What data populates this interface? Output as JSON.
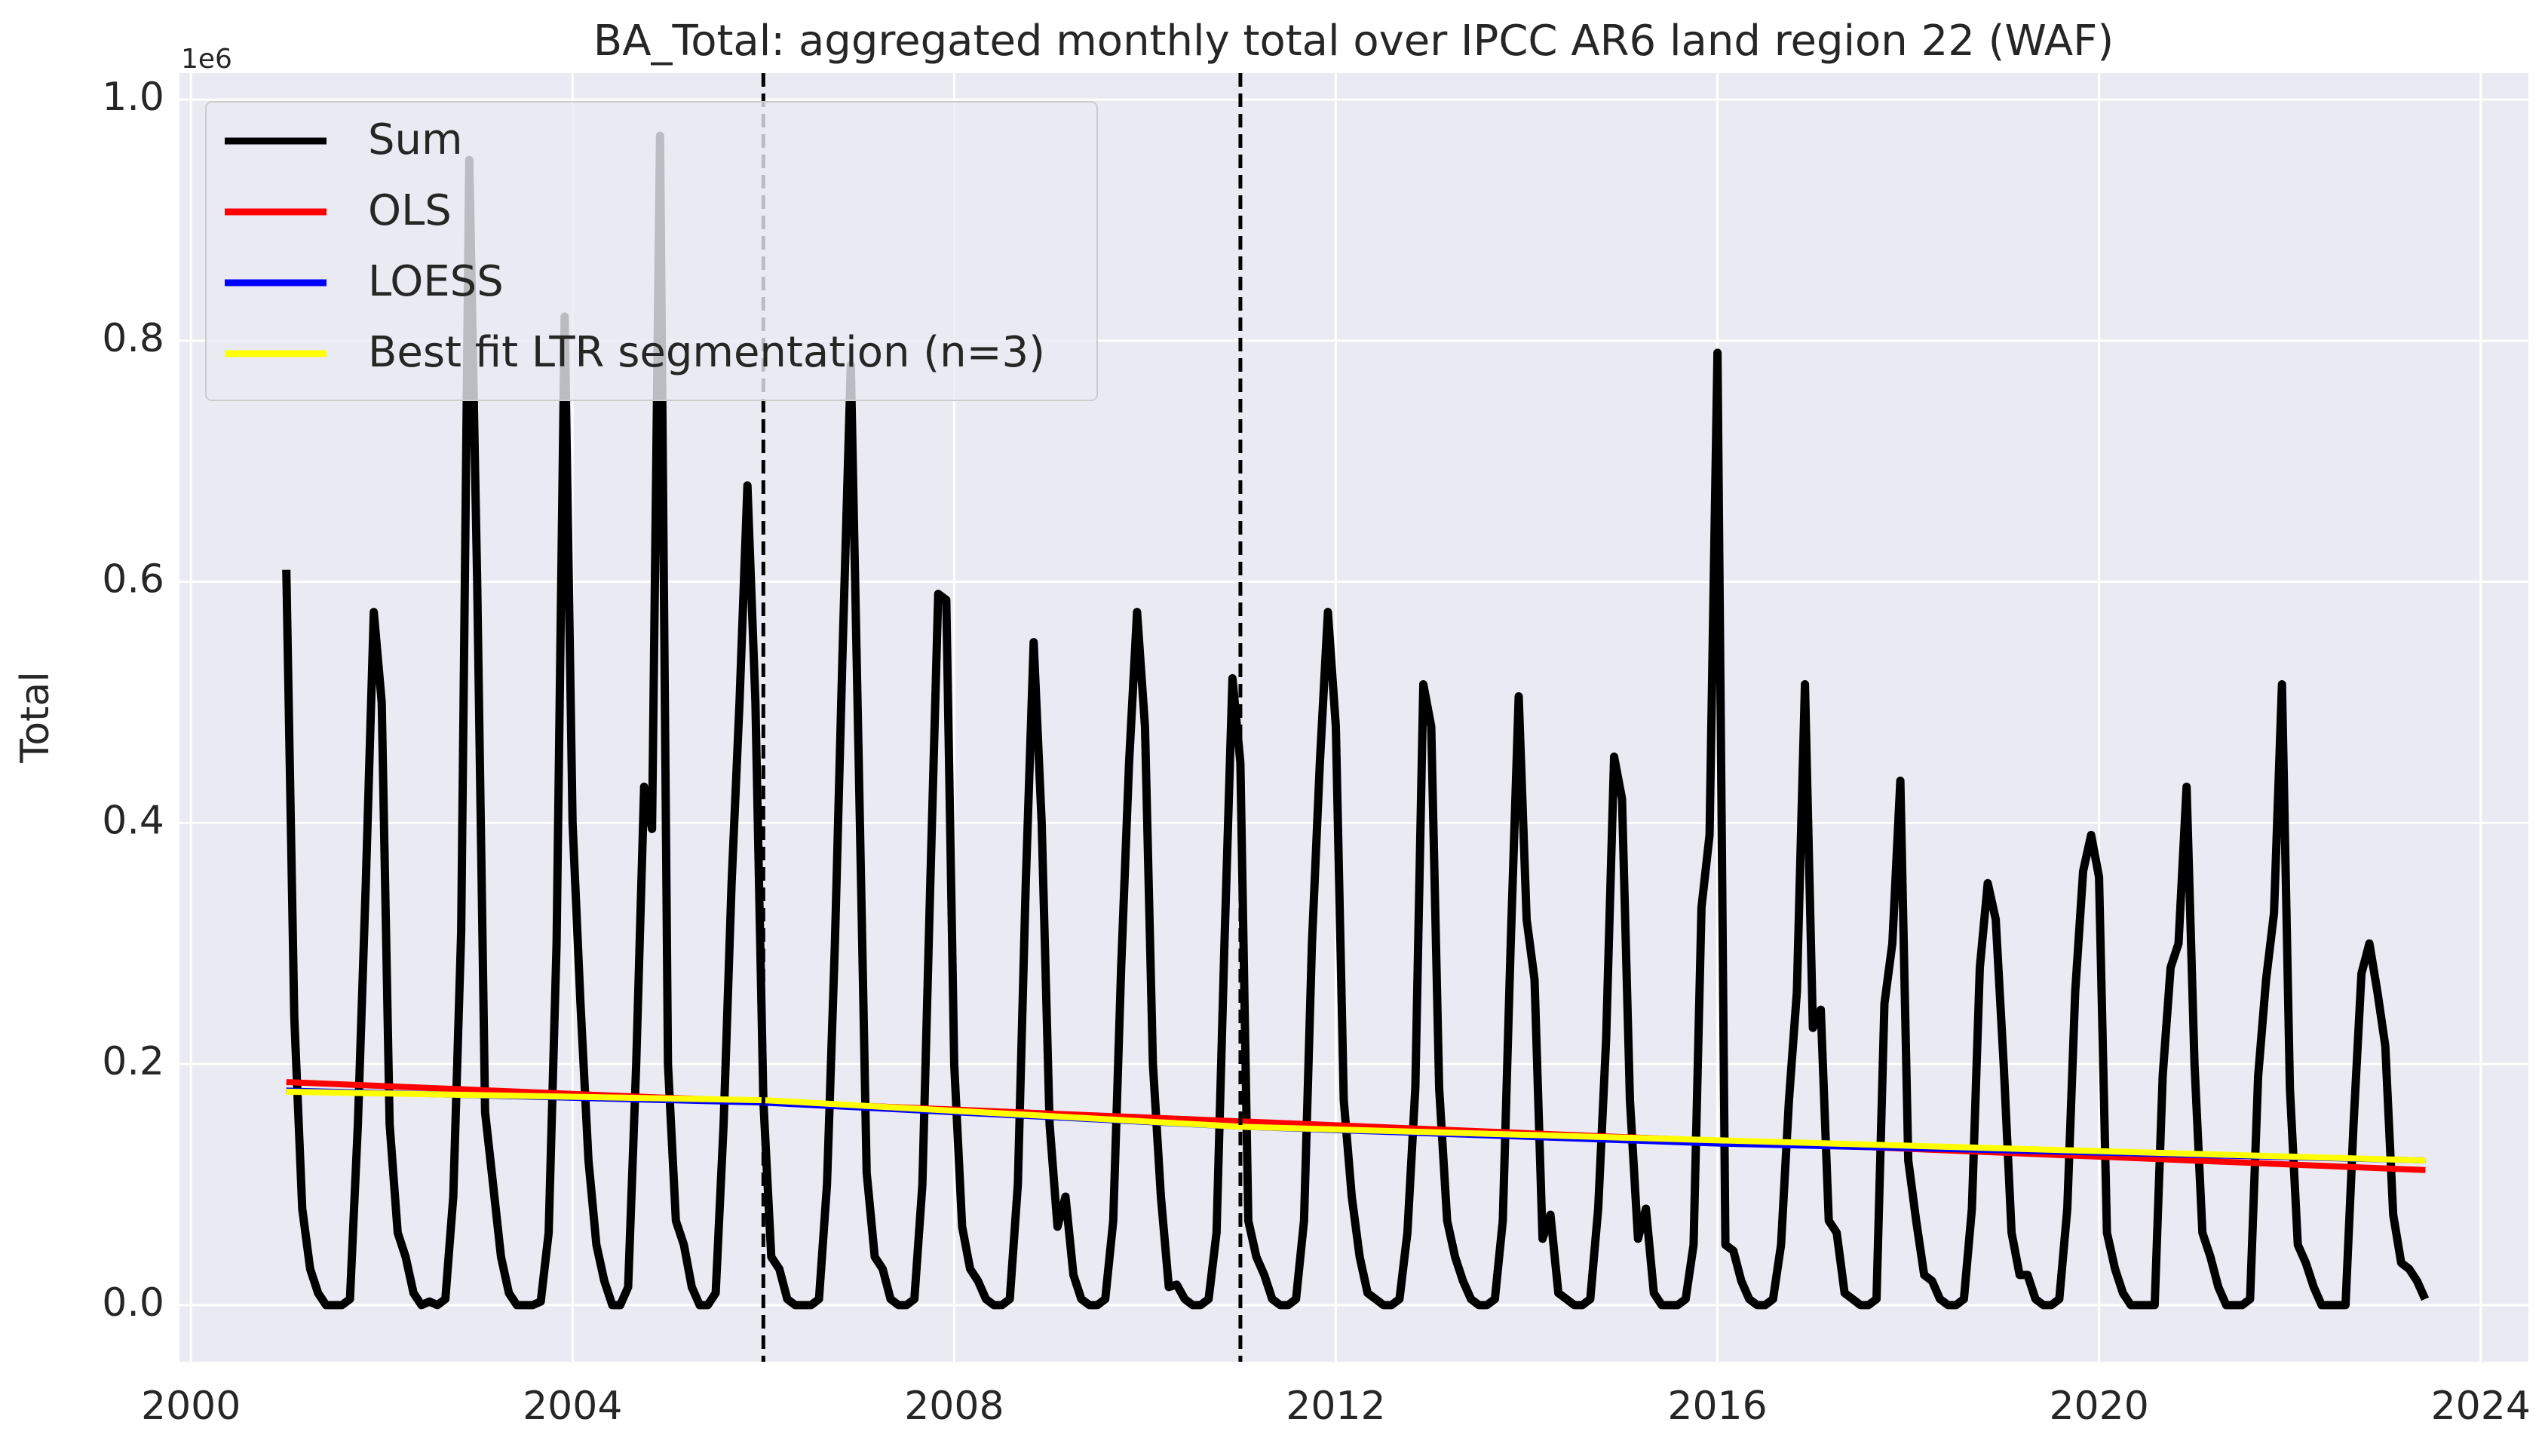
{
  "chart_data": {
    "type": "line",
    "title": "BA_Total: aggregated monthly total over IPCC AR6 land region 22 (WAF)",
    "y_label": "Total",
    "y_offset_label": "1e6",
    "xlim": [
      1999.88,
      2024.5
    ],
    "ylim": [
      -0.047,
      1.022
    ],
    "xticks": [
      2000,
      2004,
      2008,
      2012,
      2016,
      2020,
      2024
    ],
    "yticks": [
      {
        "value": 0,
        "label": "0.0"
      },
      {
        "value": 0.2,
        "label": "0.2"
      },
      {
        "value": 0.4,
        "label": "0.4"
      },
      {
        "value": 0.6,
        "label": "0.6"
      },
      {
        "value": 0.8,
        "label": "0.8"
      },
      {
        "value": 1,
        "label": "1.0"
      }
    ],
    "grid": true,
    "legend": "upper left",
    "vlines": [
      2006.0,
      2011.0
    ],
    "vline_color": "#000000",
    "series": [
      {
        "name": "Sum",
        "color": "#000000",
        "x": [
          2001,
          2001.083,
          2001.167,
          2001.25,
          2001.333,
          2001.417,
          2001.5,
          2001.583,
          2001.667,
          2001.75,
          2001.833,
          2001.917,
          2002,
          2002.083,
          2002.167,
          2002.25,
          2002.333,
          2002.417,
          2002.5,
          2002.583,
          2002.667,
          2002.75,
          2002.833,
          2002.917,
          2003,
          2003.083,
          2003.167,
          2003.25,
          2003.333,
          2003.417,
          2003.5,
          2003.583,
          2003.667,
          2003.75,
          2003.833,
          2003.917,
          2004,
          2004.083,
          2004.167,
          2004.25,
          2004.333,
          2004.417,
          2004.5,
          2004.583,
          2004.667,
          2004.75,
          2004.833,
          2004.917,
          2005,
          2005.083,
          2005.167,
          2005.25,
          2005.333,
          2005.417,
          2005.5,
          2005.583,
          2005.667,
          2005.75,
          2005.833,
          2005.917,
          2006,
          2006.083,
          2006.167,
          2006.25,
          2006.333,
          2006.417,
          2006.5,
          2006.583,
          2006.667,
          2006.75,
          2006.833,
          2006.917,
          2007,
          2007.083,
          2007.167,
          2007.25,
          2007.333,
          2007.417,
          2007.5,
          2007.583,
          2007.667,
          2007.75,
          2007.833,
          2007.917,
          2008,
          2008.083,
          2008.167,
          2008.25,
          2008.333,
          2008.417,
          2008.5,
          2008.583,
          2008.667,
          2008.75,
          2008.833,
          2008.917,
          2009,
          2009.083,
          2009.167,
          2009.25,
          2009.333,
          2009.417,
          2009.5,
          2009.583,
          2009.667,
          2009.75,
          2009.833,
          2009.917,
          2010,
          2010.083,
          2010.167,
          2010.25,
          2010.333,
          2010.417,
          2010.5,
          2010.583,
          2010.667,
          2010.75,
          2010.833,
          2010.917,
          2011,
          2011.083,
          2011.167,
          2011.25,
          2011.333,
          2011.417,
          2011.5,
          2011.583,
          2011.667,
          2011.75,
          2011.833,
          2011.917,
          2012,
          2012.083,
          2012.167,
          2012.25,
          2012.333,
          2012.417,
          2012.5,
          2012.583,
          2012.667,
          2012.75,
          2012.833,
          2012.917,
          2013,
          2013.083,
          2013.167,
          2013.25,
          2013.333,
          2013.417,
          2013.5,
          2013.583,
          2013.667,
          2013.75,
          2013.833,
          2013.917,
          2014,
          2014.083,
          2014.167,
          2014.25,
          2014.333,
          2014.417,
          2014.5,
          2014.583,
          2014.667,
          2014.75,
          2014.833,
          2014.917,
          2015,
          2015.083,
          2015.167,
          2015.25,
          2015.333,
          2015.417,
          2015.5,
          2015.583,
          2015.667,
          2015.75,
          2015.833,
          2015.917,
          2016,
          2016.083,
          2016.167,
          2016.25,
          2016.333,
          2016.417,
          2016.5,
          2016.583,
          2016.667,
          2016.75,
          2016.833,
          2016.917,
          2017,
          2017.083,
          2017.167,
          2017.25,
          2017.333,
          2017.417,
          2017.5,
          2017.583,
          2017.667,
          2017.75,
          2017.833,
          2017.917,
          2018,
          2018.083,
          2018.167,
          2018.25,
          2018.333,
          2018.417,
          2018.5,
          2018.583,
          2018.667,
          2018.75,
          2018.833,
          2018.917,
          2019,
          2019.083,
          2019.167,
          2019.25,
          2019.333,
          2019.417,
          2019.5,
          2019.583,
          2019.667,
          2019.75,
          2019.833,
          2019.917,
          2020,
          2020.083,
          2020.167,
          2020.25,
          2020.333,
          2020.417,
          2020.5,
          2020.583,
          2020.667,
          2020.75,
          2020.833,
          2020.917,
          2021,
          2021.083,
          2021.167,
          2021.25,
          2021.333,
          2021.417,
          2021.5,
          2021.583,
          2021.667,
          2021.75,
          2021.833,
          2021.917,
          2022,
          2022.083,
          2022.167,
          2022.25,
          2022.333,
          2022.417,
          2022.5,
          2022.583,
          2022.667,
          2022.75,
          2022.833,
          2022.917,
          2023,
          2023.083,
          2023.167,
          2023.25,
          2023.333,
          2023.417
        ],
        "values": [
          0.61,
          0.24,
          0.08,
          0.03,
          0.01,
          0,
          0,
          0,
          0.005,
          0.15,
          0.35,
          0.575,
          0.5,
          0.15,
          0.06,
          0.04,
          0.01,
          0,
          0.003,
          0,
          0.005,
          0.09,
          0.31,
          0.95,
          0.6,
          0.16,
          0.1,
          0.04,
          0.01,
          0,
          0,
          0,
          0.003,
          0.06,
          0.3,
          0.82,
          0.4,
          0.25,
          0.12,
          0.05,
          0.02,
          0,
          0,
          0.015,
          0.2,
          0.43,
          0.395,
          0.97,
          0.2,
          0.07,
          0.05,
          0.015,
          0,
          0,
          0.01,
          0.15,
          0.35,
          0.5,
          0.68,
          0.5,
          0.17,
          0.04,
          0.03,
          0.005,
          0,
          0,
          0,
          0.005,
          0.1,
          0.3,
          0.55,
          0.78,
          0.45,
          0.11,
          0.04,
          0.03,
          0.005,
          0,
          0,
          0.005,
          0.1,
          0.35,
          0.59,
          0.585,
          0.2,
          0.065,
          0.03,
          0.02,
          0.005,
          0,
          0,
          0.005,
          0.1,
          0.35,
          0.55,
          0.4,
          0.15,
          0.065,
          0.09,
          0.025,
          0.005,
          0,
          0,
          0.005,
          0.07,
          0.28,
          0.45,
          0.575,
          0.48,
          0.2,
          0.09,
          0.015,
          0.017,
          0.005,
          0,
          0,
          0.005,
          0.06,
          0.3,
          0.52,
          0.45,
          0.07,
          0.04,
          0.025,
          0.005,
          0,
          0,
          0.005,
          0.07,
          0.3,
          0.45,
          0.575,
          0.48,
          0.17,
          0.09,
          0.04,
          0.01,
          0.005,
          0,
          0,
          0.005,
          0.06,
          0.18,
          0.515,
          0.48,
          0.18,
          0.07,
          0.04,
          0.02,
          0.005,
          0,
          0,
          0.005,
          0.07,
          0.3,
          0.505,
          0.32,
          0.27,
          0.055,
          0.075,
          0.01,
          0.005,
          0,
          0,
          0.005,
          0.08,
          0.22,
          0.455,
          0.42,
          0.17,
          0.055,
          0.08,
          0.01,
          0,
          0,
          0,
          0.005,
          0.05,
          0.33,
          0.39,
          0.79,
          0.05,
          0.045,
          0.02,
          0.005,
          0,
          0,
          0.005,
          0.05,
          0.17,
          0.26,
          0.515,
          0.23,
          0.245,
          0.07,
          0.06,
          0.01,
          0.005,
          0,
          0,
          0.005,
          0.25,
          0.3,
          0.435,
          0.12,
          0.07,
          0.025,
          0.02,
          0.005,
          0,
          0,
          0.005,
          0.08,
          0.28,
          0.35,
          0.32,
          0.2,
          0.06,
          0.025,
          0.025,
          0.005,
          0,
          0,
          0.005,
          0.08,
          0.26,
          0.36,
          0.39,
          0.355,
          0.06,
          0.03,
          0.01,
          0,
          0,
          0,
          0,
          0.19,
          0.28,
          0.3,
          0.43,
          0.2,
          0.06,
          0.04,
          0.015,
          0,
          0,
          0,
          0.005,
          0.19,
          0.27,
          0.325,
          0.515,
          0.18,
          0.05,
          0.035,
          0.015,
          0,
          0,
          0,
          0,
          0.15,
          0.275,
          0.3,
          0.26,
          0.215,
          0.075,
          0.035,
          0.03,
          0.02,
          0.005
        ]
      },
      {
        "name": "OLS",
        "color": "#ff0000",
        "x": [
          2001,
          2023.42
        ],
        "values": [
          0.185,
          0.112
        ]
      },
      {
        "name": "LOESS",
        "color": "#0000ff",
        "x": [
          2001,
          2006,
          2011,
          2016,
          2023.42
        ],
        "values": [
          0.178,
          0.168,
          0.148,
          0.134,
          0.12
        ]
      },
      {
        "name": "Best fit LTR segmentation (n=3)",
        "color": "#ffff00",
        "x": [
          2001,
          2006,
          2011,
          2023.42
        ],
        "values": [
          0.177,
          0.17,
          0.148,
          0.12
        ]
      }
    ]
  }
}
